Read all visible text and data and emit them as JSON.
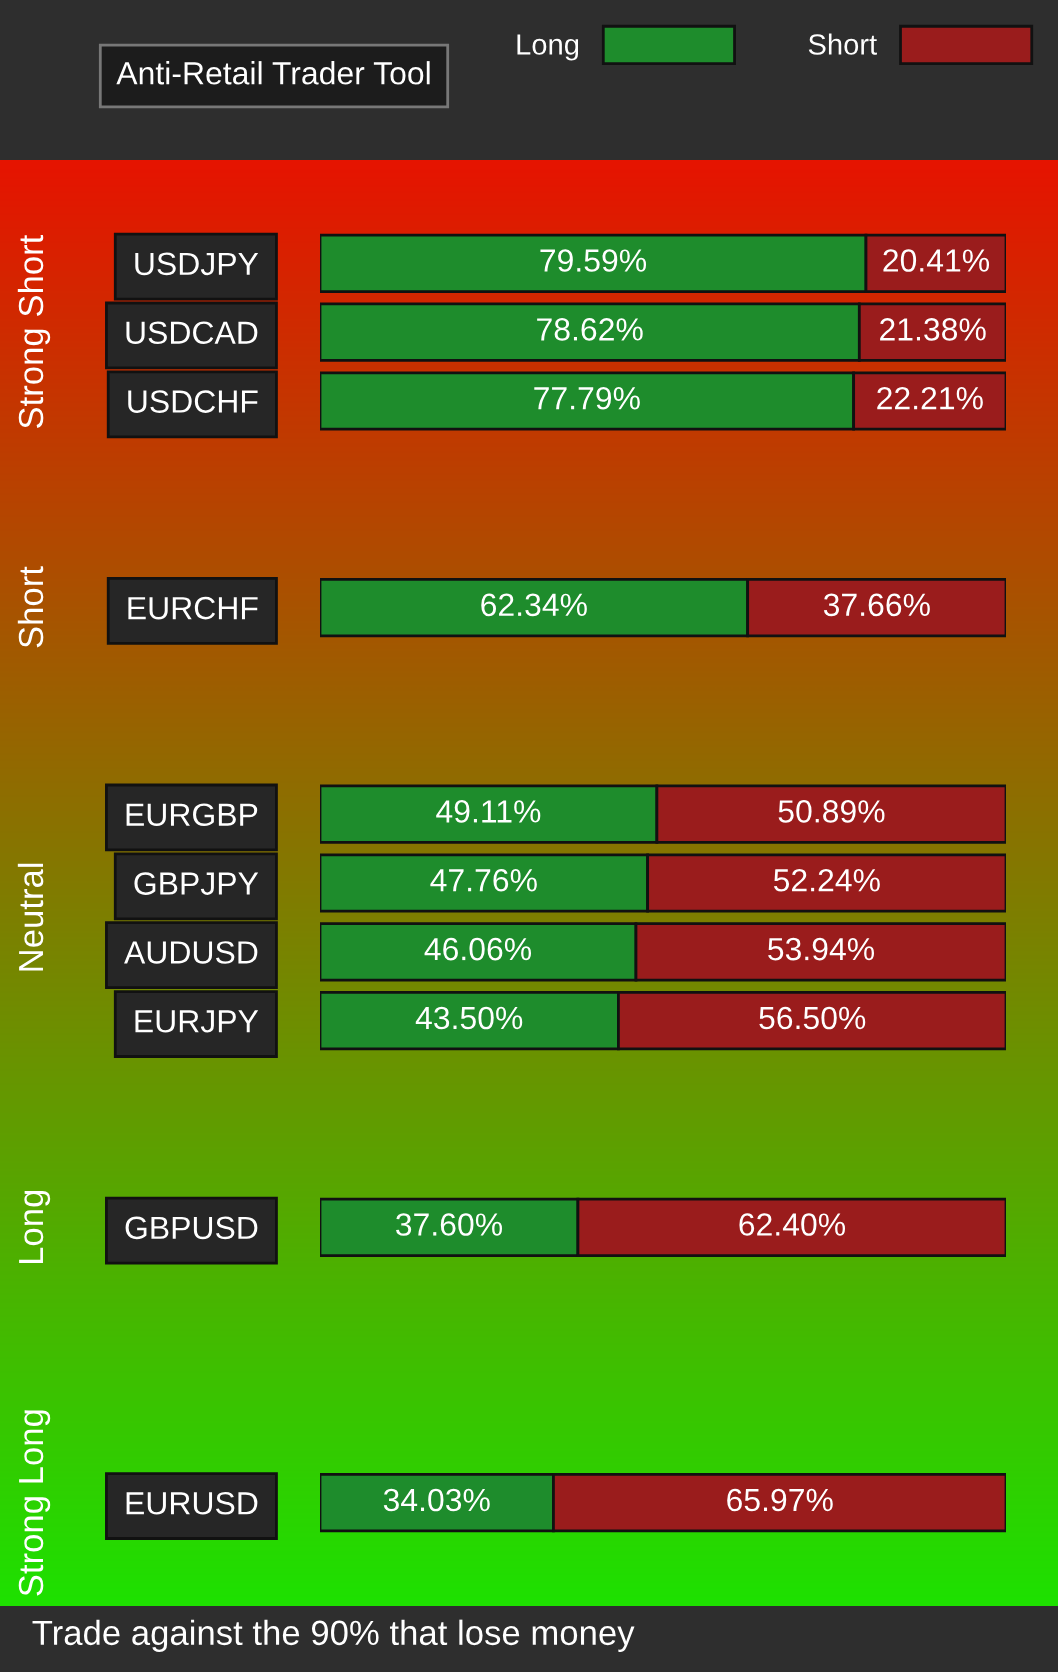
{
  "chart_data": {
    "type": "bar",
    "orientation": "horizontal",
    "stacked": true,
    "title": "Anti-Retail Trader Tool",
    "legend": "top",
    "categories": [
      "USDJPY",
      "USDCAD",
      "USDCHF",
      null,
      null,
      "EURCHF",
      null,
      null,
      "EURGBP",
      "GBPJPY",
      "AUDUSD",
      "EURJPY",
      null,
      null,
      "GBPUSD",
      null,
      null,
      null,
      "EURUSD"
    ],
    "series": [
      {
        "name": "Long",
        "color": "#1e8c2c",
        "values": [
          79.59,
          78.62,
          77.79,
          null,
          null,
          62.34,
          null,
          null,
          49.11,
          47.76,
          46.06,
          43.5,
          null,
          null,
          37.6,
          null,
          null,
          null,
          34.03
        ],
        "value_labels": [
          "79.59%",
          "78.62%",
          "77.79%",
          null,
          null,
          "62.34%",
          null,
          null,
          "49.11%",
          "47.76%",
          "46.06%",
          "43.50%",
          null,
          null,
          "37.60%",
          null,
          null,
          null,
          "34.03%"
        ]
      },
      {
        "name": "Short",
        "color": "#9a1c1c",
        "values": [
          20.41,
          21.38,
          22.21,
          null,
          null,
          37.66,
          null,
          null,
          50.89,
          52.24,
          53.94,
          56.5,
          null,
          null,
          62.4,
          null,
          null,
          null,
          65.97
        ],
        "value_labels": [
          "20.41%",
          "21.38%",
          "22.21%",
          null,
          null,
          "37.66%",
          null,
          null,
          "50.89%",
          "52.24%",
          "53.94%",
          "56.50%",
          null,
          null,
          "62.40%",
          null,
          null,
          null,
          "65.97%"
        ]
      }
    ],
    "annotations": [
      "Strong Short",
      "Short",
      "Neutral",
      "Long",
      "Strong Long",
      "Trade against the 90% that lose money"
    ]
  }
}
